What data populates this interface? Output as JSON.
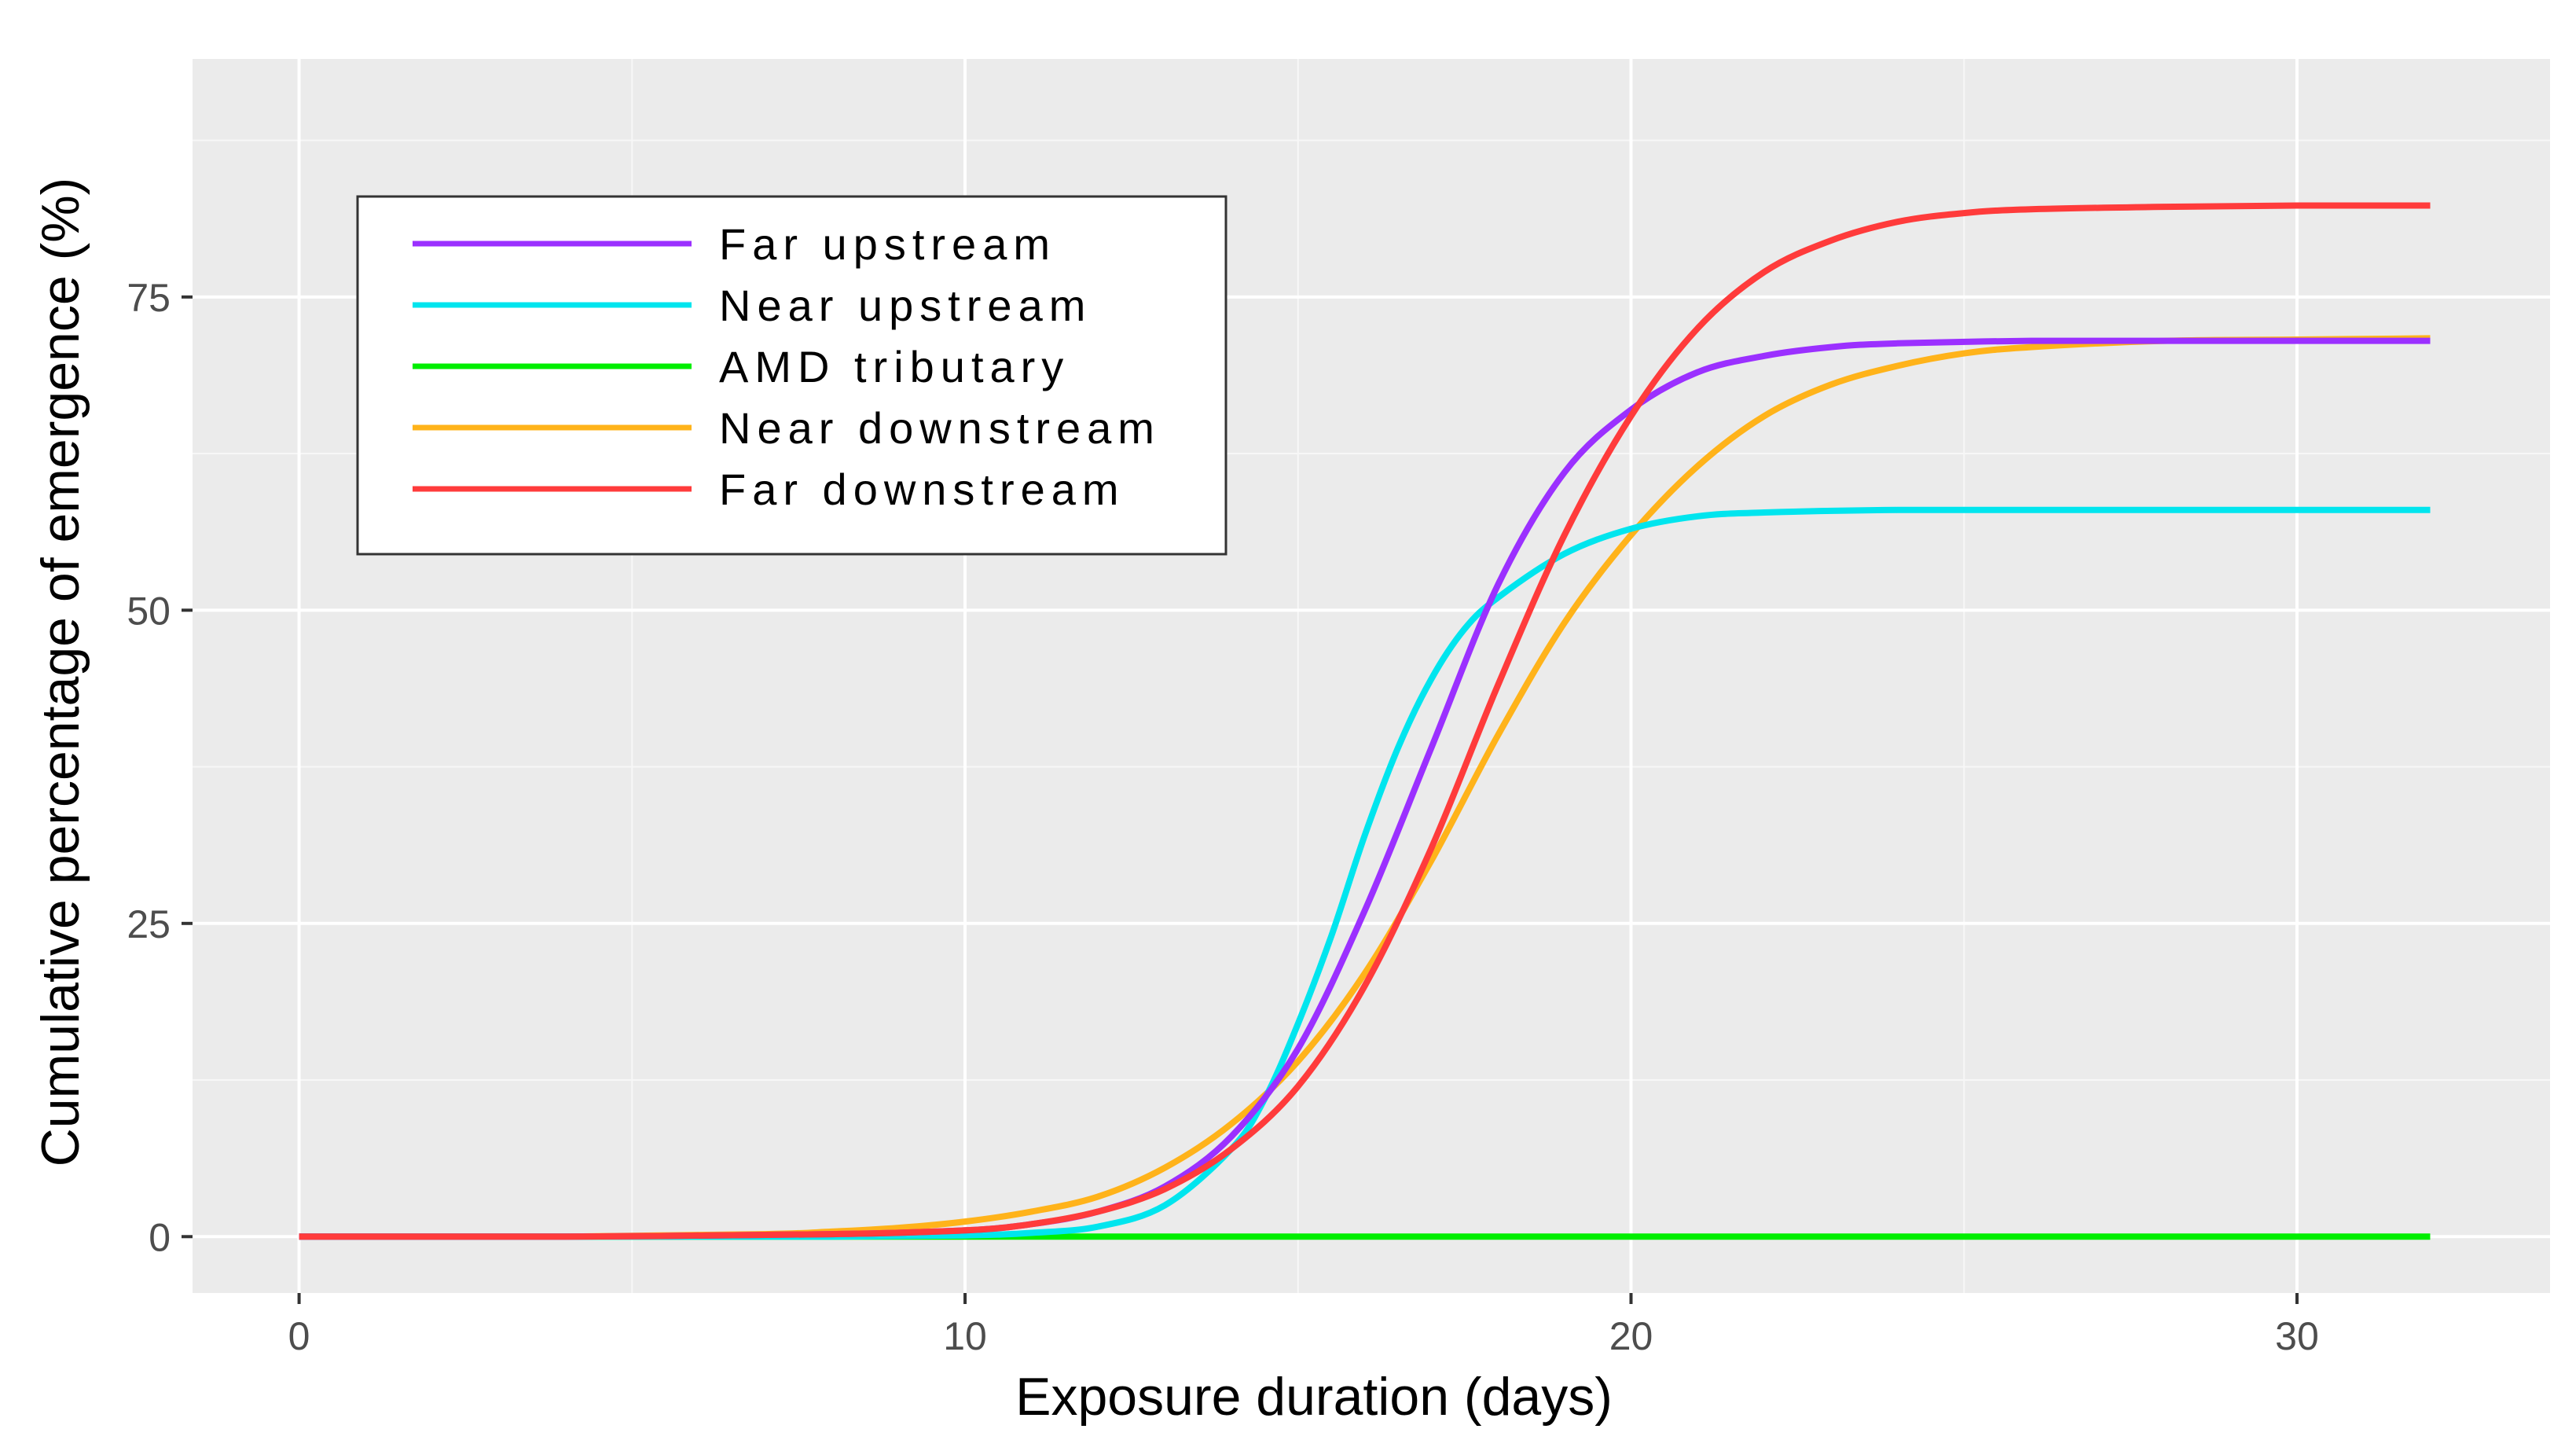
{
  "chart_data": {
    "type": "line",
    "title": "",
    "xlabel": "Exposure duration (days)",
    "ylabel": "Cumulative percentage of emergence (%)",
    "xlim": [
      -1.6,
      33.8
    ],
    "ylim": [
      -4.5,
      94
    ],
    "x_ticks": [
      0,
      10,
      20,
      30
    ],
    "y_ticks": [
      0,
      25,
      50,
      75
    ],
    "grid": true,
    "legend_position": "top-left",
    "series": [
      {
        "name": "Far upstream",
        "color": "#9b30ff",
        "x": [
          0,
          4,
          8,
          10,
          11,
          12,
          13,
          14,
          15,
          16,
          17,
          18,
          19,
          20,
          21,
          22,
          23,
          24,
          26,
          28,
          30,
          32
        ],
        "y": [
          0,
          0,
          0.2,
          0.5,
          1,
          2,
          4,
          8,
          15,
          26,
          39,
          52,
          61,
          66,
          69,
          70.3,
          71,
          71.3,
          71.5,
          71.5,
          71.5,
          71.5
        ]
      },
      {
        "name": "Near upstream",
        "color": "#00e5ee",
        "x": [
          0,
          4,
          8,
          10,
          11,
          12,
          13,
          14,
          14.5,
          15,
          15.5,
          16,
          16.5,
          17,
          17.5,
          18,
          19,
          20,
          21,
          22,
          24,
          26,
          28,
          30,
          32
        ],
        "y": [
          0,
          0,
          0,
          0.1,
          0.3,
          0.8,
          2.5,
          7,
          11,
          17,
          24,
          32,
          39,
          44.5,
          48.5,
          51,
          54.5,
          56.5,
          57.5,
          57.8,
          58,
          58,
          58,
          58,
          58
        ]
      },
      {
        "name": "AMD tributary",
        "color": "#00ee00",
        "x": [
          0,
          32
        ],
        "y": [
          0,
          0
        ]
      },
      {
        "name": "Near downstream",
        "color": "#ffb31a",
        "x": [
          0,
          4,
          7,
          8,
          9,
          10,
          11,
          12,
          13,
          14,
          15,
          16,
          17,
          18,
          19,
          20,
          21,
          22,
          23,
          24,
          25,
          26,
          28,
          30,
          32
        ],
        "y": [
          0,
          0,
          0.2,
          0.4,
          0.7,
          1.2,
          2,
          3.2,
          5.5,
          9,
          14,
          21,
          30,
          40,
          49,
          56,
          61.5,
          65.5,
          68,
          69.5,
          70.5,
          71,
          71.5,
          71.6,
          71.7
        ]
      },
      {
        "name": "Far downstream",
        "color": "#ff3b3b",
        "x": [
          0,
          4,
          8,
          10,
          11,
          12,
          13,
          14,
          15,
          16,
          17,
          18,
          19,
          20,
          21,
          22,
          23,
          24,
          25,
          26,
          28,
          30,
          32
        ],
        "y": [
          0,
          0,
          0.2,
          0.5,
          1,
          2,
          3.8,
          7,
          12,
          20,
          31,
          44,
          56,
          65.5,
          72.5,
          77,
          79.5,
          81,
          81.7,
          82,
          82.2,
          82.3,
          82.3
        ]
      }
    ]
  }
}
